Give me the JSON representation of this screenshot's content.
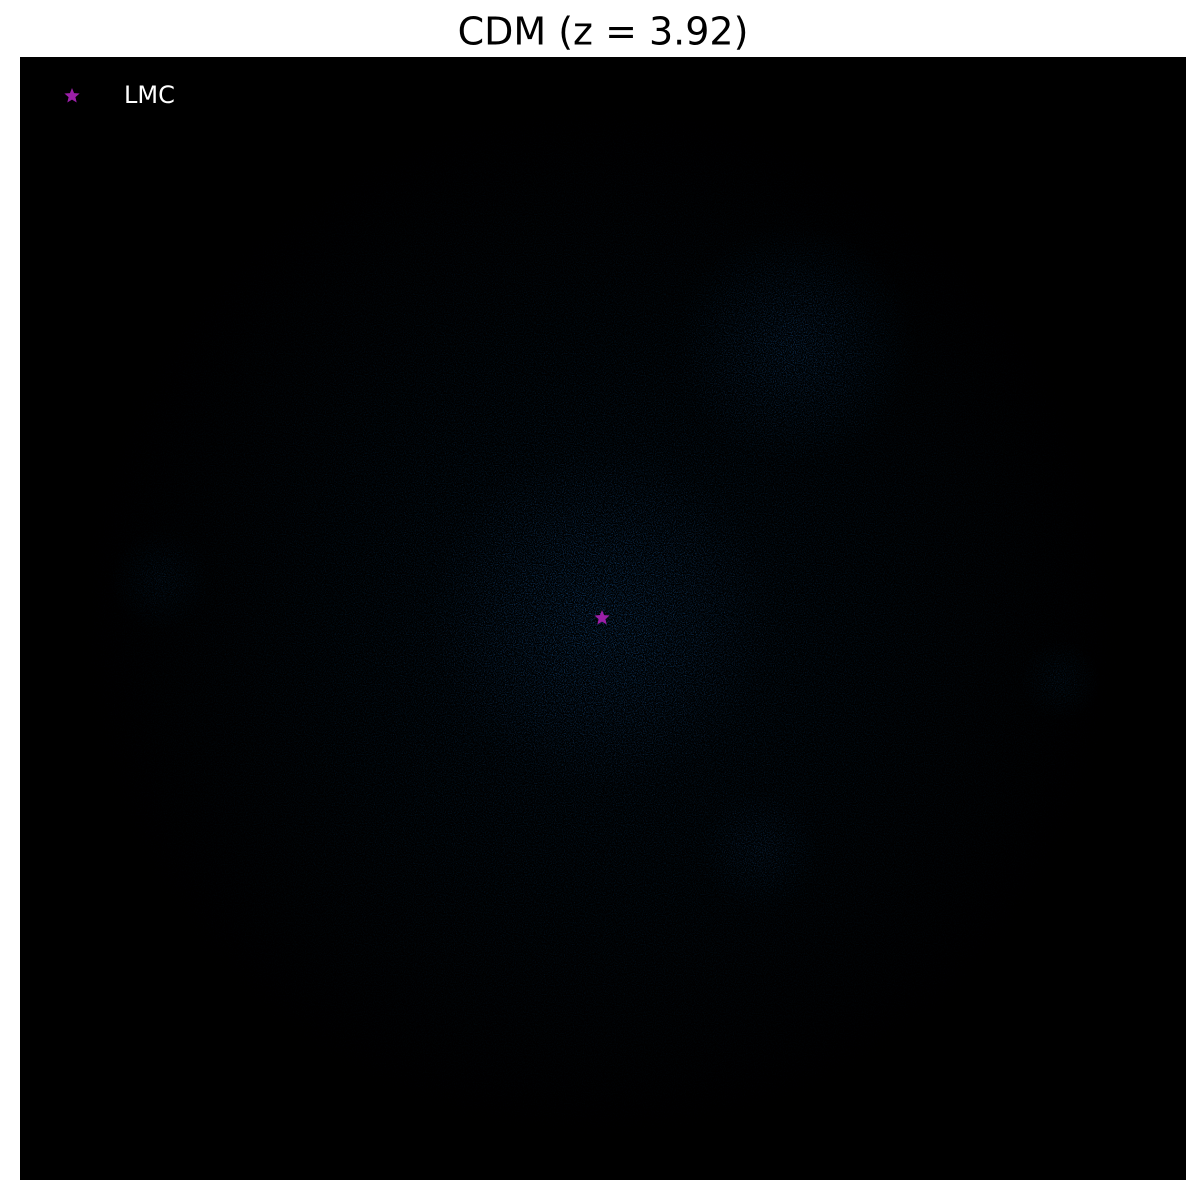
{
  "chart_data": {
    "type": "scatter",
    "title": "CDM (z = 3.92)",
    "background": "#000000",
    "particle_color": "#1f77d4",
    "series": [
      {
        "name": "LMC",
        "color": "#9b1fa8",
        "marker": "star"
      }
    ],
    "legend": "upper left"
  }
}
